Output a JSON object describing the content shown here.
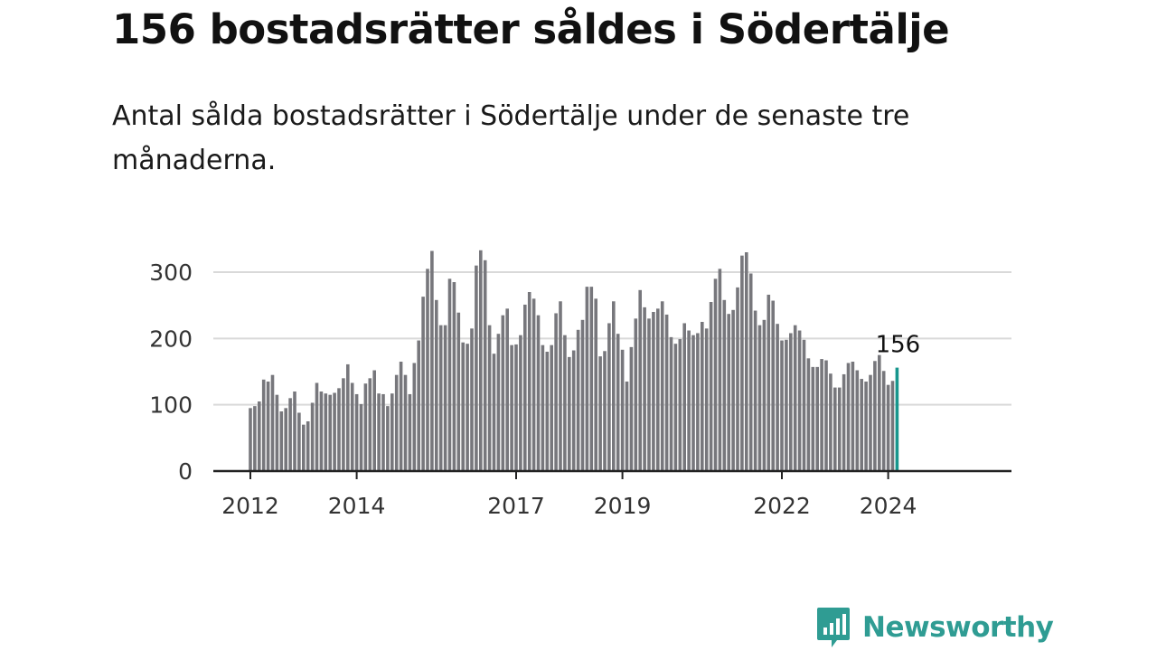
{
  "header": {
    "title": "156 bostadsrätter såldes i Södertälje",
    "subtitle": "Antal sålda bostadsrätter i Södertälje under de senaste tre månaderna."
  },
  "brand": {
    "name": "Newsworthy",
    "icon": "newsworthy-logo-icon",
    "color": "#2f9c93"
  },
  "colors": {
    "bar": "#77777c",
    "highlight": "#17968d",
    "grid": "#d9d9d9",
    "axis": "#222222"
  },
  "chart_data": {
    "type": "bar",
    "title": "156 bostadsrätter såldes i Södertälje",
    "subtitle": "Antal sålda bostadsrätter i Södertälje under de senaste tre månaderna.",
    "xlabel": "",
    "ylabel": "",
    "x_start": "2012-01",
    "ylim": [
      0,
      320
    ],
    "yticks": [
      0,
      100,
      200,
      300
    ],
    "xticks": [
      {
        "label": "2012",
        "index": 0
      },
      {
        "label": "2014",
        "index": 24
      },
      {
        "label": "2017",
        "index": 60
      },
      {
        "label": "2019",
        "index": 84
      },
      {
        "label": "2022",
        "index": 120
      },
      {
        "label": "2024",
        "index": 144
      }
    ],
    "grid": true,
    "highlight_index": 146,
    "highlight_label": "156",
    "values": [
      95,
      98,
      105,
      138,
      135,
      145,
      115,
      90,
      95,
      110,
      120,
      88,
      70,
      75,
      103,
      133,
      120,
      117,
      115,
      118,
      125,
      140,
      161,
      133,
      116,
      101,
      132,
      140,
      152,
      117,
      116,
      98,
      117,
      145,
      165,
      145,
      116,
      163,
      197,
      263,
      305,
      332,
      258,
      220,
      220,
      290,
      285,
      239,
      194,
      192,
      215,
      310,
      333,
      318,
      220,
      177,
      207,
      235,
      245,
      190,
      191,
      205,
      251,
      270,
      260,
      235,
      190,
      180,
      190,
      238,
      256,
      205,
      172,
      182,
      213,
      228,
      278,
      278,
      260,
      173,
      181,
      223,
      256,
      207,
      183,
      135,
      187,
      230,
      273,
      247,
      230,
      240,
      245,
      256,
      236,
      202,
      192,
      199,
      223,
      212,
      205,
      208,
      225,
      215,
      255,
      290,
      305,
      258,
      237,
      243,
      277,
      325,
      330,
      298,
      242,
      220,
      228,
      266,
      257,
      222,
      197,
      198,
      208,
      220,
      212,
      198,
      170,
      157,
      157,
      169,
      167,
      147,
      126,
      126,
      146,
      163,
      165,
      152,
      139,
      135,
      145,
      166,
      175,
      151,
      130,
      136,
      156
    ]
  }
}
